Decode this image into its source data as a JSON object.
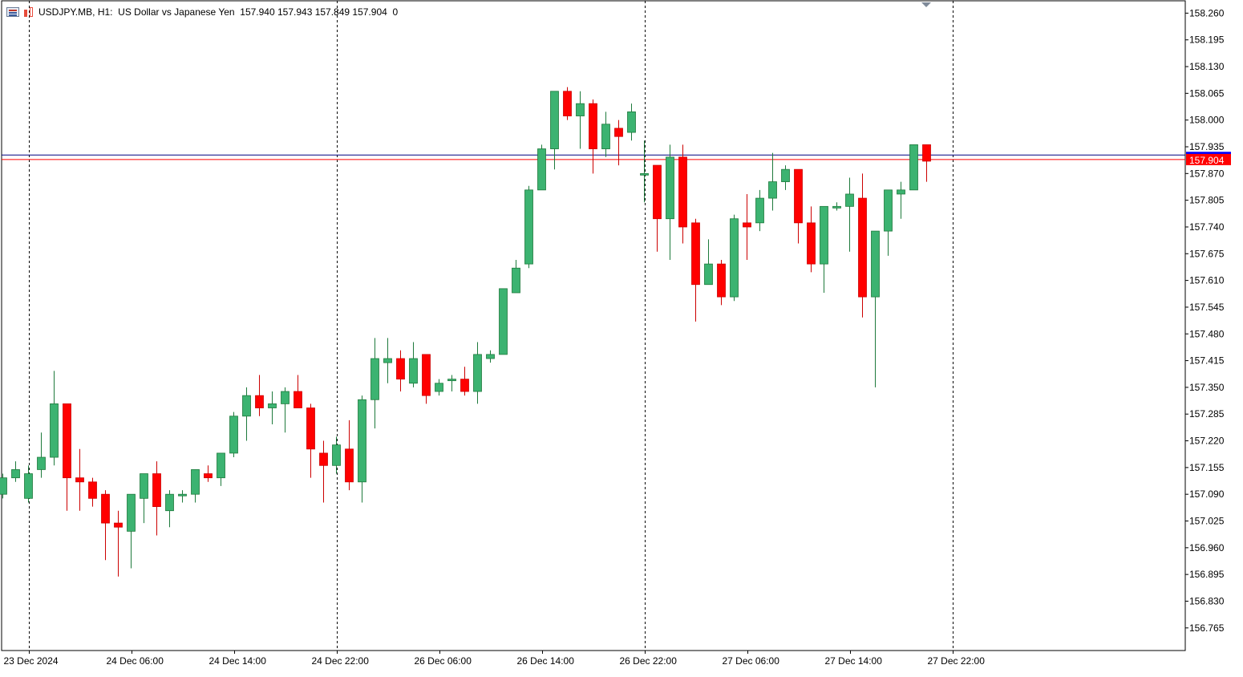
{
  "header": {
    "symbol": "USDJPY.MB",
    "timeframe": "H1:",
    "description": "US Dollar vs Japanese Yen",
    "ohlc": "157.940 157.943 157.849 157.904",
    "volume": "0"
  },
  "icons": [
    "chart-list-icon",
    "chart-bars-icon",
    "scroll-marker-icon"
  ],
  "colors": {
    "bull": "#3cb371",
    "bear": "#ff0000",
    "wick_bull": "#1e7a3c",
    "wick_bear": "#cc0000",
    "bid_line": "#000080",
    "ask_line": "#ff0000",
    "price_tag_bid": "#ff0000",
    "price_tag_ask": "#0000ff"
  },
  "chart_data": {
    "type": "candlestick",
    "symbol": "USDJPY.MB",
    "interval": "H1",
    "ylim": [
      156.71,
      158.29
    ],
    "yticks": [
      "158.260",
      "158.195",
      "158.130",
      "158.065",
      "158.000",
      "157.935",
      "157.870",
      "157.805",
      "157.740",
      "157.675",
      "157.610",
      "157.545",
      "157.480",
      "157.415",
      "157.350",
      "157.285",
      "157.220",
      "157.155",
      "157.090",
      "157.025",
      "156.960",
      "156.895",
      "156.830",
      "156.765"
    ],
    "xticks": [
      {
        "label": "23 Dec 2024",
        "index": 2
      },
      {
        "label": "24 Dec 06:00",
        "index": 10
      },
      {
        "label": "24 Dec 14:00",
        "index": 18
      },
      {
        "label": "24 Dec 22:00",
        "index": 26
      },
      {
        "label": "26 Dec 06:00",
        "index": 34
      },
      {
        "label": "26 Dec 14:00",
        "index": 42
      },
      {
        "label": "26 Dec 22:00",
        "index": 50
      },
      {
        "label": "27 Dec 06:00",
        "index": 58
      },
      {
        "label": "27 Dec 14:00",
        "index": 66
      },
      {
        "label": "27 Dec 22:00",
        "index": 74
      }
    ],
    "day_separators": [
      2,
      26,
      50,
      74
    ],
    "bid": 157.904,
    "bid_label": "157.904",
    "ask": 157.915,
    "candles": [
      [
        157.09,
        157.14,
        157.08,
        157.13
      ],
      [
        157.13,
        157.17,
        157.12,
        157.15
      ],
      [
        157.08,
        157.16,
        157.07,
        157.14
      ],
      [
        157.15,
        157.24,
        157.13,
        157.18
      ],
      [
        157.18,
        157.39,
        157.16,
        157.31
      ],
      [
        157.31,
        157.31,
        157.05,
        157.13
      ],
      [
        157.13,
        157.2,
        157.05,
        157.12
      ],
      [
        157.12,
        157.13,
        157.06,
        157.08
      ],
      [
        157.09,
        157.1,
        156.93,
        157.02
      ],
      [
        157.02,
        157.05,
        156.89,
        157.01
      ],
      [
        157.0,
        157.08,
        156.91,
        157.09
      ],
      [
        157.08,
        157.14,
        157.02,
        157.14
      ],
      [
        157.14,
        157.17,
        156.99,
        157.06
      ],
      [
        157.05,
        157.1,
        157.01,
        157.09
      ],
      [
        157.09,
        157.1,
        157.07,
        157.09
      ],
      [
        157.09,
        157.15,
        157.07,
        157.15
      ],
      [
        157.14,
        157.16,
        157.12,
        157.13
      ],
      [
        157.13,
        157.19,
        157.11,
        157.19
      ],
      [
        157.19,
        157.29,
        157.18,
        157.28
      ],
      [
        157.28,
        157.35,
        157.22,
        157.33
      ],
      [
        157.33,
        157.38,
        157.28,
        157.3
      ],
      [
        157.3,
        157.34,
        157.26,
        157.31
      ],
      [
        157.31,
        157.35,
        157.24,
        157.34
      ],
      [
        157.34,
        157.38,
        157.3,
        157.3
      ],
      [
        157.3,
        157.31,
        157.13,
        157.2
      ],
      [
        157.19,
        157.22,
        157.07,
        157.16
      ],
      [
        157.16,
        157.23,
        157.14,
        157.21
      ],
      [
        157.2,
        157.27,
        157.1,
        157.12
      ],
      [
        157.12,
        157.33,
        157.07,
        157.32
      ],
      [
        157.32,
        157.47,
        157.25,
        157.42
      ],
      [
        157.41,
        157.47,
        157.36,
        157.42
      ],
      [
        157.42,
        157.44,
        157.34,
        157.37
      ],
      [
        157.36,
        157.46,
        157.35,
        157.42
      ],
      [
        157.43,
        157.43,
        157.31,
        157.33
      ],
      [
        157.34,
        157.37,
        157.33,
        157.36
      ],
      [
        157.37,
        157.38,
        157.34,
        157.37
      ],
      [
        157.37,
        157.4,
        157.33,
        157.34
      ],
      [
        157.34,
        157.46,
        157.31,
        157.43
      ],
      [
        157.42,
        157.44,
        157.41,
        157.43
      ],
      [
        157.43,
        157.59,
        157.43,
        157.59
      ],
      [
        157.58,
        157.66,
        157.58,
        157.64
      ],
      [
        157.65,
        157.84,
        157.64,
        157.83
      ],
      [
        157.83,
        157.94,
        157.83,
        157.93
      ],
      [
        157.93,
        158.07,
        157.88,
        158.07
      ],
      [
        158.07,
        158.08,
        158.0,
        158.01
      ],
      [
        158.01,
        158.07,
        157.93,
        158.04
      ],
      [
        158.04,
        158.05,
        157.87,
        157.93
      ],
      [
        157.93,
        158.02,
        157.91,
        157.99
      ],
      [
        157.98,
        158.0,
        157.89,
        157.96
      ],
      [
        157.97,
        158.04,
        157.95,
        158.02
      ],
      [
        157.87,
        157.95,
        157.8,
        157.87
      ],
      [
        157.89,
        157.89,
        157.68,
        157.76
      ],
      [
        157.76,
        157.94,
        157.66,
        157.91
      ],
      [
        157.91,
        157.94,
        157.7,
        157.74
      ],
      [
        157.75,
        157.76,
        157.51,
        157.6
      ],
      [
        157.6,
        157.71,
        157.6,
        157.65
      ],
      [
        157.65,
        157.66,
        157.55,
        157.57
      ],
      [
        157.57,
        157.77,
        157.56,
        157.76
      ],
      [
        157.75,
        157.82,
        157.66,
        157.74
      ],
      [
        157.75,
        157.83,
        157.73,
        157.81
      ],
      [
        157.81,
        157.92,
        157.78,
        157.85
      ],
      [
        157.85,
        157.89,
        157.83,
        157.88
      ],
      [
        157.88,
        157.88,
        157.7,
        157.75
      ],
      [
        157.75,
        157.79,
        157.63,
        157.65
      ],
      [
        157.65,
        157.79,
        157.58,
        157.79
      ],
      [
        157.79,
        157.8,
        157.78,
        157.79
      ],
      [
        157.79,
        157.86,
        157.68,
        157.82
      ],
      [
        157.81,
        157.87,
        157.52,
        157.57
      ],
      [
        157.57,
        157.73,
        157.35,
        157.73
      ],
      [
        157.73,
        157.83,
        157.67,
        157.83
      ],
      [
        157.82,
        157.85,
        157.76,
        157.83
      ],
      [
        157.83,
        157.94,
        157.83,
        157.94
      ],
      [
        157.94,
        157.94,
        157.85,
        157.9
      ]
    ]
  }
}
